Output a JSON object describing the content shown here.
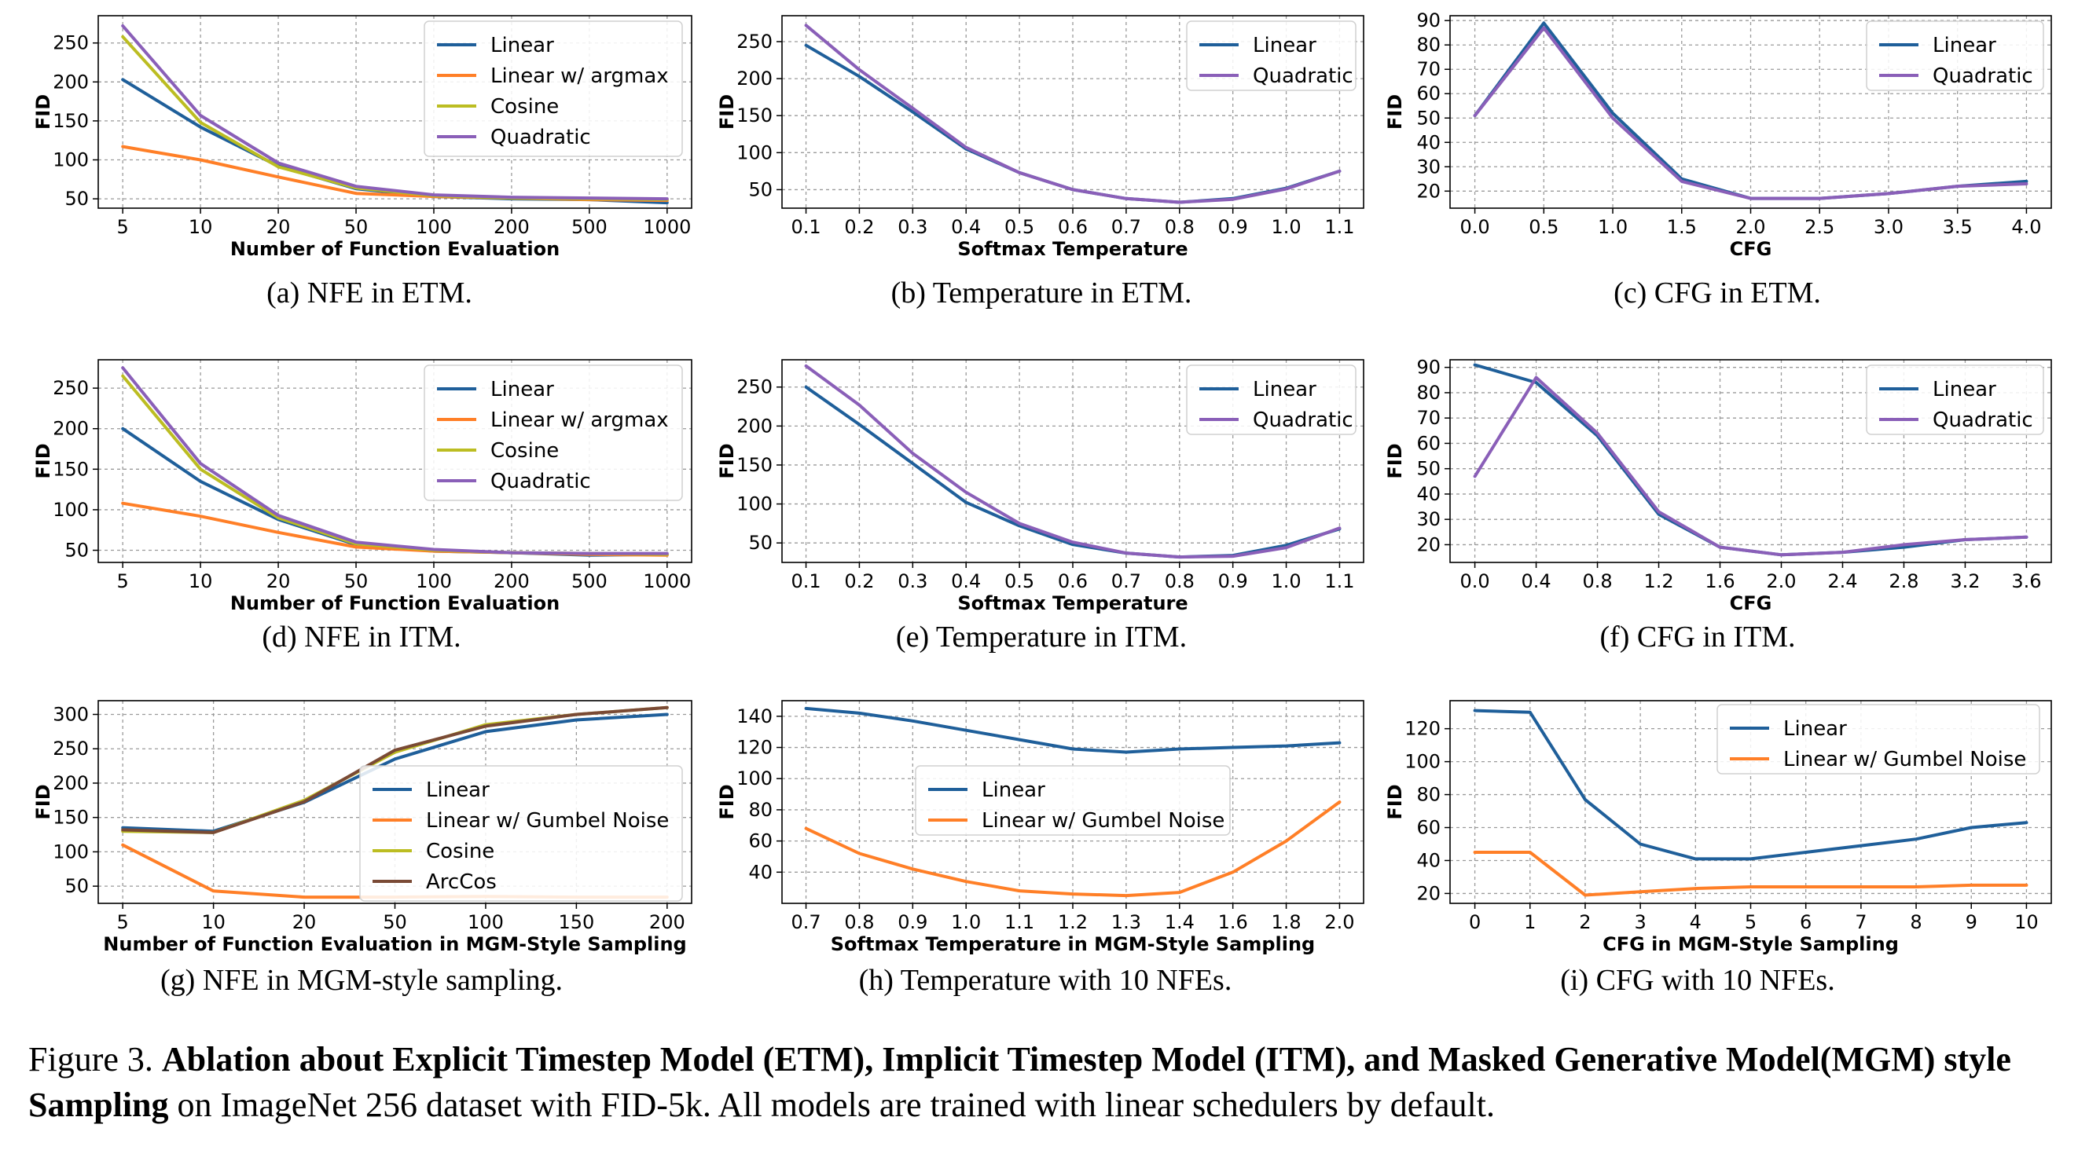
{
  "colors": {
    "Linear": "#1f5f9a",
    "Linear w/ argmax": "#ff7f27",
    "Linear w/ Gumbel Noise": "#ff7f27",
    "Cosine": "#bcbd22",
    "Quadratic": "#8a5fb8",
    "ArcCos": "#7a4a35"
  },
  "chart_data": [
    {
      "type": "line",
      "caption": "(a) NFE in ETM.",
      "xlabel": "Number of Function Evaluation",
      "ylabel": "FID",
      "categories": [
        "5",
        "10",
        "20",
        "50",
        "100",
        "200",
        "500",
        "1000"
      ],
      "ylim": [
        38,
        285
      ],
      "yticks": [
        50,
        100,
        150,
        200,
        250
      ],
      "grid": true,
      "legend": "top-right",
      "series": [
        {
          "name": "Linear",
          "values": [
            203,
            142,
            92,
            63,
            53,
            50,
            49,
            45
          ]
        },
        {
          "name": "Linear w/ argmax",
          "values": [
            117,
            100,
            78,
            57,
            53,
            51,
            49,
            48
          ]
        },
        {
          "name": "Cosine",
          "values": [
            258,
            148,
            91,
            64,
            54,
            51,
            50,
            49
          ]
        },
        {
          "name": "Quadratic",
          "values": [
            272,
            157,
            96,
            66,
            55,
            52,
            51,
            50
          ]
        }
      ]
    },
    {
      "type": "line",
      "caption": "(b) Temperature in ETM.",
      "xlabel": "Softmax Temperature",
      "ylabel": "FID",
      "x": [
        0.1,
        0.2,
        0.3,
        0.4,
        0.5,
        0.6,
        0.7,
        0.8,
        0.9,
        1.0,
        1.1
      ],
      "xticks": [
        "0.1",
        "0.2",
        "0.3",
        "0.4",
        "0.5",
        "0.6",
        "0.7",
        "0.8",
        "0.9",
        "1.0",
        "1.1"
      ],
      "ylim": [
        25,
        285
      ],
      "yticks": [
        50,
        100,
        150,
        200,
        250
      ],
      "grid": true,
      "legend": "top-right",
      "series": [
        {
          "name": "Linear",
          "values": [
            245,
            203,
            155,
            105,
            73,
            50,
            38,
            33,
            38,
            52,
            75
          ]
        },
        {
          "name": "Quadratic",
          "values": [
            272,
            212,
            160,
            107,
            73,
            50,
            38,
            33,
            37,
            51,
            75
          ]
        }
      ]
    },
    {
      "type": "line",
      "caption": "(c) CFG in ETM.",
      "xlabel": "CFG",
      "ylabel": "FID",
      "x": [
        0.0,
        0.5,
        1.0,
        1.5,
        2.0,
        2.5,
        3.0,
        3.5,
        4.0
      ],
      "xticks": [
        "0.0",
        "0.5",
        "1.0",
        "1.5",
        "2.0",
        "2.5",
        "3.0",
        "3.5",
        "4.0"
      ],
      "ylim": [
        13,
        92
      ],
      "yticks": [
        20,
        30,
        40,
        50,
        60,
        70,
        80,
        90
      ],
      "grid": true,
      "legend": "top-right",
      "series": [
        {
          "name": "Linear",
          "values": [
            51,
            89,
            52,
            25,
            17,
            17,
            19,
            22,
            24
          ]
        },
        {
          "name": "Quadratic",
          "values": [
            51,
            87,
            50,
            24,
            17,
            17,
            19,
            22,
            23
          ]
        }
      ]
    },
    {
      "type": "line",
      "caption": "(d) NFE in ITM.",
      "xlabel": "Number of Function Evaluation",
      "ylabel": "FID",
      "categories": [
        "5",
        "10",
        "20",
        "50",
        "100",
        "200",
        "500",
        "1000"
      ],
      "ylim": [
        35,
        285
      ],
      "yticks": [
        50,
        100,
        150,
        200,
        250
      ],
      "grid": true,
      "legend": "top-right",
      "series": [
        {
          "name": "Linear",
          "values": [
            200,
            135,
            88,
            57,
            49,
            47,
            44,
            45
          ]
        },
        {
          "name": "Linear w/ argmax",
          "values": [
            108,
            92,
            72,
            54,
            49,
            47,
            45,
            44
          ]
        },
        {
          "name": "Cosine",
          "values": [
            265,
            150,
            90,
            58,
            50,
            47,
            46,
            45
          ]
        },
        {
          "name": "Quadratic",
          "values": [
            275,
            157,
            93,
            60,
            51,
            47,
            46,
            46
          ]
        }
      ]
    },
    {
      "type": "line",
      "caption": "(e) Temperature in ITM.",
      "xlabel": "Softmax Temperature",
      "ylabel": "FID",
      "x": [
        0.1,
        0.2,
        0.3,
        0.4,
        0.5,
        0.6,
        0.7,
        0.8,
        0.9,
        1.0,
        1.1
      ],
      "xticks": [
        "0.1",
        "0.2",
        "0.3",
        "0.4",
        "0.5",
        "0.6",
        "0.7",
        "0.8",
        "0.9",
        "1.0",
        "1.1"
      ],
      "ylim": [
        25,
        285
      ],
      "yticks": [
        50,
        100,
        150,
        200,
        250
      ],
      "grid": true,
      "legend": "top-right",
      "series": [
        {
          "name": "Linear",
          "values": [
            250,
            202,
            152,
            102,
            72,
            48,
            37,
            32,
            34,
            47,
            68
          ]
        },
        {
          "name": "Quadratic",
          "values": [
            277,
            227,
            165,
            115,
            75,
            51,
            37,
            32,
            33,
            44,
            69
          ]
        }
      ]
    },
    {
      "type": "line",
      "caption": "(f) CFG in ITM.",
      "xlabel": "CFG",
      "ylabel": "FID",
      "x": [
        0.0,
        0.4,
        0.8,
        1.2,
        1.6,
        2.0,
        2.4,
        2.8,
        3.2,
        3.6
      ],
      "xticks": [
        "0.0",
        "0.4",
        "0.8",
        "1.2",
        "1.6",
        "2.0",
        "2.4",
        "2.8",
        "3.2",
        "3.6"
      ],
      "ylim": [
        13,
        93
      ],
      "yticks": [
        20,
        30,
        40,
        50,
        60,
        70,
        80,
        90
      ],
      "grid": true,
      "legend": "top-right",
      "series": [
        {
          "name": "Linear",
          "values": [
            91,
            84,
            63,
            32,
            19,
            16,
            17,
            19,
            22,
            23
          ]
        },
        {
          "name": "Quadratic",
          "values": [
            47,
            86,
            64,
            33,
            19,
            16,
            17,
            20,
            22,
            23
          ]
        }
      ]
    },
    {
      "type": "line",
      "caption": "(g) NFE in MGM-style sampling.",
      "xlabel": "Number of Function Evaluation in MGM-Style Sampling",
      "ylabel": "FID",
      "categories": [
        "5",
        "10",
        "20",
        "50",
        "100",
        "150",
        "200"
      ],
      "ylim": [
        25,
        320
      ],
      "yticks": [
        50,
        100,
        150,
        200,
        250,
        300
      ],
      "grid": true,
      "legend": "right",
      "series": [
        {
          "name": "Linear",
          "values": [
            135,
            130,
            172,
            235,
            275,
            292,
            300
          ]
        },
        {
          "name": "Linear w/ Gumbel Noise",
          "values": [
            110,
            43,
            34,
            34,
            35,
            34,
            34
          ]
        },
        {
          "name": "Cosine",
          "values": [
            130,
            128,
            175,
            245,
            285,
            300,
            310
          ]
        },
        {
          "name": "ArcCos",
          "values": [
            132,
            128,
            173,
            248,
            283,
            300,
            310
          ]
        }
      ]
    },
    {
      "type": "line",
      "caption": "(h) Temperature with 10 NFEs.",
      "xlabel": "Softmax Temperature in MGM-Style Sampling",
      "ylabel": "FID",
      "categories": [
        "0.7",
        "0.8",
        "0.9",
        "1.0",
        "1.1",
        "1.2",
        "1.3",
        "1.4",
        "1.6",
        "1.8",
        "2.0"
      ],
      "ylim": [
        20,
        150
      ],
      "yticks": [
        40,
        60,
        80,
        100,
        120,
        140
      ],
      "grid": true,
      "legend": "center",
      "series": [
        {
          "name": "Linear",
          "values": [
            145,
            142,
            137,
            131,
            125,
            119,
            117,
            119,
            120,
            121,
            123
          ]
        },
        {
          "name": "Linear w/ Gumbel Noise",
          "values": [
            68,
            52,
            42,
            34,
            28,
            26,
            25,
            27,
            40,
            60,
            85
          ]
        }
      ]
    },
    {
      "type": "line",
      "caption": "(i) CFG with 10 NFEs.",
      "xlabel": "CFG in MGM-Style Sampling",
      "ylabel": "FID",
      "x": [
        0,
        1,
        2,
        3,
        4,
        5,
        6,
        7,
        8,
        9,
        10
      ],
      "xticks": [
        "0",
        "1",
        "2",
        "3",
        "4",
        "5",
        "6",
        "7",
        "8",
        "9",
        "10"
      ],
      "ylim": [
        14,
        137
      ],
      "yticks": [
        20,
        40,
        60,
        80,
        100,
        120
      ],
      "grid": true,
      "legend": "top-right",
      "series": [
        {
          "name": "Linear",
          "values": [
            131,
            130,
            77,
            50,
            41,
            41,
            45,
            49,
            53,
            60,
            63
          ]
        },
        {
          "name": "Linear w/ Gumbel Noise",
          "values": [
            45,
            45,
            19,
            21,
            23,
            24,
            24,
            24,
            24,
            25,
            25
          ]
        }
      ]
    }
  ],
  "figure_caption": {
    "label": "Figure 3.",
    "bold": "Ablation about Explicit Timestep Model (ETM), Implicit Timestep Model (ITM), and Masked Generative Model(MGM) style Sampling",
    "rest": "on ImageNet 256 dataset with FID-5k. All models are trained with linear schedulers by default."
  }
}
